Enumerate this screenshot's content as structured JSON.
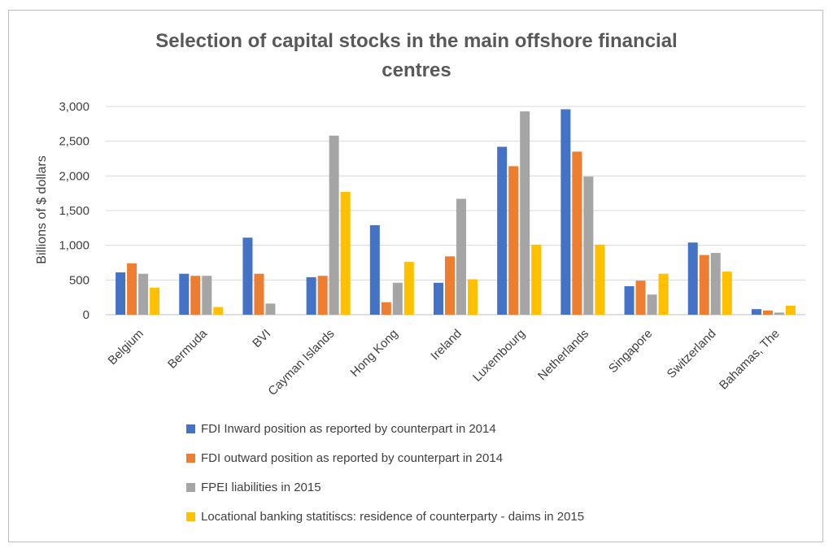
{
  "chart_data": {
    "type": "bar",
    "title_lines": [
      "Selection of capital stocks in the main offshore financial",
      "centres"
    ],
    "xlabel": "",
    "ylabel": "Billions of $ dollars",
    "ylim": [
      0,
      3000
    ],
    "yticks": [
      0,
      500,
      1000,
      1500,
      2000,
      2500,
      3000
    ],
    "ytick_labels": [
      "0",
      "500",
      "1,000",
      "1,500",
      "2,000",
      "2,500",
      "3,000"
    ],
    "grid": true,
    "legend_position": "bottom",
    "categories": [
      "Belgium",
      "Bermuda",
      "BVI",
      "Cayman Islands",
      "Hong Kong",
      "Ireland",
      "Luxembourg",
      "Netherlands",
      "Singapore",
      "Switzerland",
      "Bahamas, The"
    ],
    "series": [
      {
        "name": "FDI Inward position as reported by counterpart in 2014",
        "color": "#4472c4",
        "values": [
          610,
          590,
          1110,
          540,
          1290,
          460,
          2420,
          2960,
          410,
          1040,
          80
        ]
      },
      {
        "name": "FDI outward position as reported by counterpart in 2014",
        "color": "#ed7d31",
        "values": [
          740,
          560,
          590,
          560,
          180,
          840,
          2140,
          2350,
          490,
          860,
          60
        ]
      },
      {
        "name": "FPEI liabilities in  2015",
        "color": "#a5a5a5",
        "values": [
          590,
          560,
          160,
          2580,
          460,
          1670,
          2930,
          1990,
          290,
          890,
          30
        ]
      },
      {
        "name": "Locational banking statitiscs: residence of counterparty - daims in 2015",
        "color": "#ffc000",
        "values": [
          390,
          110,
          0,
          1770,
          760,
          510,
          1010,
          1010,
          590,
          620,
          130
        ]
      }
    ]
  }
}
